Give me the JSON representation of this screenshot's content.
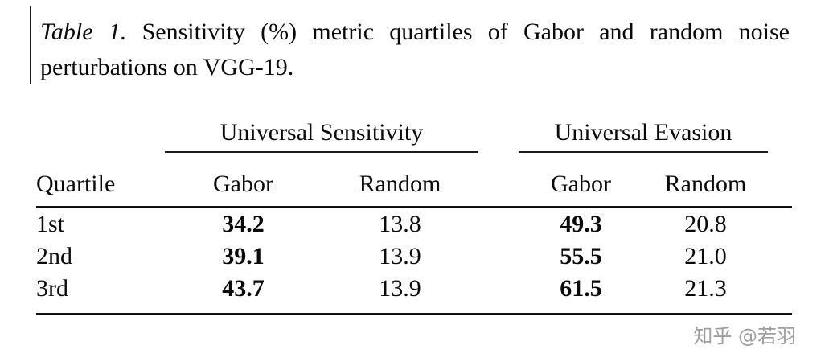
{
  "caption": {
    "label": "Table 1.",
    "text": "Sensitivity (%) metric quartiles of Gabor and random noise perturbations on VGG-19."
  },
  "table": {
    "group_headers": [
      "Universal Sensitivity",
      "Universal Evasion"
    ],
    "col_headers": [
      "Quartile",
      "Gabor",
      "Random",
      "Gabor",
      "Random"
    ],
    "rows": [
      {
        "quartile": "1st",
        "us_gabor": "34.2",
        "us_random": "13.8",
        "ue_gabor": "49.3",
        "ue_random": "20.8"
      },
      {
        "quartile": "2nd",
        "us_gabor": "39.1",
        "us_random": "13.9",
        "ue_gabor": "55.5",
        "ue_random": "21.0"
      },
      {
        "quartile": "3rd",
        "us_gabor": "43.7",
        "us_random": "13.9",
        "ue_gabor": "61.5",
        "ue_random": "21.3"
      }
    ]
  },
  "watermark": "知乎 @若羽",
  "colors": {
    "text": "#0a0a0a",
    "rule": "#111111",
    "watermark": "#9e9e9e",
    "background": "#ffffff"
  },
  "chart_data": {
    "type": "table",
    "title": "Table 1. Sensitivity (%) metric quartiles of Gabor and random noise perturbations on VGG-19.",
    "column_groups": [
      "Universal Sensitivity",
      "Universal Evasion"
    ],
    "columns": [
      "Quartile",
      "Universal Sensitivity Gabor",
      "Universal Sensitivity Random",
      "Universal Evasion Gabor",
      "Universal Evasion Random"
    ],
    "rows": [
      [
        "1st",
        34.2,
        13.8,
        49.3,
        20.8
      ],
      [
        "2nd",
        39.1,
        13.9,
        55.5,
        21.0
      ],
      [
        "3rd",
        43.7,
        13.9,
        61.5,
        21.3
      ]
    ]
  }
}
